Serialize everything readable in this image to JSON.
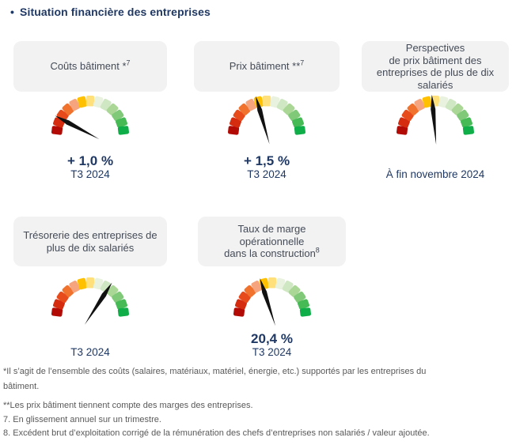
{
  "title": {
    "bullet": "•",
    "text": "Situation financière des entreprises"
  },
  "colors": {
    "accent_navy": "#1f3864",
    "header_box_bg": "#f2f2f2",
    "header_text": "#444b57",
    "footnote_text": "#595959"
  },
  "gauge": {
    "segment_colors": [
      "#b20a04",
      "#d52c0f",
      "#e74b1c",
      "#f1722c",
      "#f5a47d",
      "#ffc000",
      "#ffe07a",
      "#e9f2de",
      "#cfe7c2",
      "#aad795",
      "#7fc979",
      "#45ba55",
      "#0fae48"
    ],
    "needle_color": "#111111",
    "arc_span_deg": 180
  },
  "panels": [
    {
      "id": "couts-batiment",
      "header": {
        "text": "Coûts bâtiment *",
        "sup": "7"
      },
      "needle_angle_deg": 152,
      "value": "+ 1,0 %",
      "period": "T3 2024"
    },
    {
      "id": "prix-batiment",
      "header": {
        "text": "Prix bâtiment **",
        "sup": "7"
      },
      "needle_angle_deg": 106,
      "value": "+ 1,5 %",
      "period": "T3 2024"
    },
    {
      "id": "perspectives-prix-batiment",
      "header": {
        "text": "Perspectives\nde prix bâtiment des\nentreprises de plus de dix\nsalariés",
        "sup": ""
      },
      "needle_angle_deg": 95,
      "value": "",
      "period": "À fin novembre 2024"
    },
    {
      "id": "tresorerie",
      "header": {
        "text": "Trésorerie des entreprises de\nplus de dix salariés",
        "sup": ""
      },
      "needle_angle_deg": 57,
      "value": "",
      "period": "T3 2024"
    },
    {
      "id": "taux-de-marge",
      "header": {
        "text": "Taux de marge\nopérationnelle\ndans la construction",
        "sup": "8"
      },
      "needle_angle_deg": 108,
      "value": "20,4 %",
      "period": "T3 2024"
    }
  ],
  "chart_data": [
    {
      "type": "gauge",
      "title": "Coûts bâtiment *7",
      "scale": "13 colored segments from dark red (bad) to green (good) over a 180° arc",
      "needle_fraction_from_red_end": 0.16,
      "value_label": "+ 1,0 %",
      "period": "T3 2024"
    },
    {
      "type": "gauge",
      "title": "Prix bâtiment **7",
      "scale": "13 colored segments from dark red to green over a 180° arc",
      "needle_fraction_from_red_end": 0.41,
      "value_label": "+ 1,5 %",
      "period": "T3 2024"
    },
    {
      "type": "gauge",
      "title": "Perspectives de prix bâtiment des entreprises de plus de dix salariés",
      "scale": "13 colored segments from dark red to green over a 180° arc",
      "needle_fraction_from_red_end": 0.47,
      "value_label": "",
      "period": "À fin novembre 2024"
    },
    {
      "type": "gauge",
      "title": "Trésorerie des entreprises de plus de dix salariés",
      "scale": "13 colored segments from dark red to green over a 180° arc",
      "needle_fraction_from_red_end": 0.68,
      "value_label": "",
      "period": "T3 2024"
    },
    {
      "type": "gauge",
      "title": "Taux de marge opérationnelle dans la construction 8",
      "scale": "13 colored segments from dark red to green over a 180° arc",
      "needle_fraction_from_red_end": 0.4,
      "value_label": "20,4 %",
      "period": "T3 2024"
    }
  ],
  "footnotes": [
    "*Il s’agit de l’ensemble des coûts (salaires, matériaux, matériel, énergie, etc.) supportés par les entreprises du\nbâtiment.",
    "**Les prix bâtiment tiennent compte des marges des entreprises.",
    "7. En glissement annuel sur un trimestre.",
    "8. Excédent brut d’exploitation corrigé de la rémunération des chefs d’entreprises non salariés / valeur ajoutée."
  ]
}
